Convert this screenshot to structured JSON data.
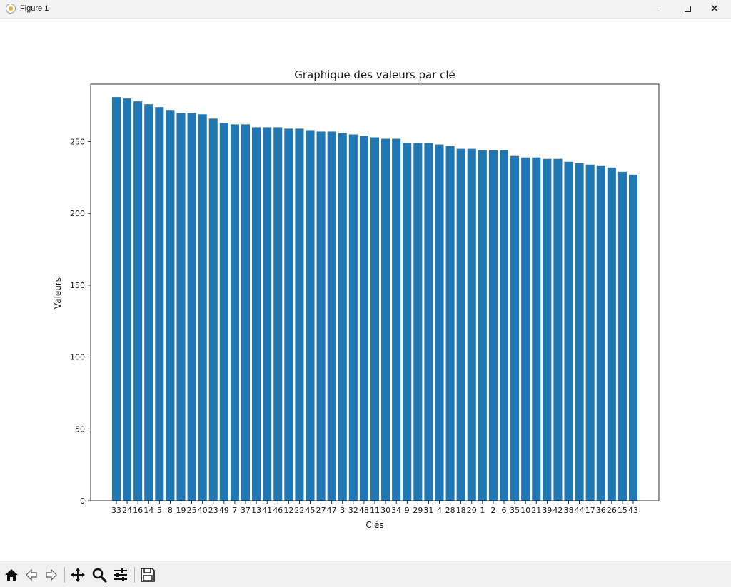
{
  "window": {
    "title": "Figure 1",
    "controls": {
      "minimize": "minimize",
      "maximize": "maximize",
      "close": "close"
    }
  },
  "toolbar": {
    "buttons": [
      {
        "name": "home",
        "icon": "home-icon"
      },
      {
        "name": "back",
        "icon": "arrow-left-icon"
      },
      {
        "name": "forward",
        "icon": "arrow-right-icon"
      },
      {
        "name": "pan",
        "icon": "move-icon"
      },
      {
        "name": "zoom",
        "icon": "magnifier-icon"
      },
      {
        "name": "subplots",
        "icon": "sliders-icon"
      },
      {
        "name": "save",
        "icon": "save-icon"
      }
    ]
  },
  "chart_data": {
    "type": "bar",
    "title": "Graphique des valeurs par clé",
    "xlabel": "Clés",
    "ylabel": "Valeurs",
    "ylim": [
      0,
      290
    ],
    "yticks": [
      0,
      50,
      100,
      150,
      200,
      250
    ],
    "bar_color": "#1f77b4",
    "categories": [
      "33",
      "24",
      "16",
      "14",
      "5",
      "8",
      "19",
      "25",
      "40",
      "23",
      "49",
      "7",
      "37",
      "13",
      "41",
      "46",
      "12",
      "22",
      "45",
      "27",
      "47",
      "3",
      "32",
      "48",
      "11",
      "30",
      "34",
      "9",
      "29",
      "31",
      "4",
      "28",
      "18",
      "20",
      "1",
      "2",
      "6",
      "35",
      "10",
      "21",
      "39",
      "42",
      "38",
      "44",
      "17",
      "36",
      "26",
      "15",
      "43"
    ],
    "values": [
      281,
      280,
      278,
      276,
      274,
      272,
      270,
      270,
      269,
      266,
      263,
      262,
      262,
      260,
      260,
      260,
      259,
      259,
      258,
      257,
      257,
      256,
      255,
      254,
      253,
      252,
      252,
      249,
      249,
      249,
      248,
      247,
      245,
      245,
      244,
      244,
      244,
      240,
      239,
      239,
      238,
      238,
      236,
      235,
      234,
      233,
      232,
      229,
      227
    ]
  }
}
